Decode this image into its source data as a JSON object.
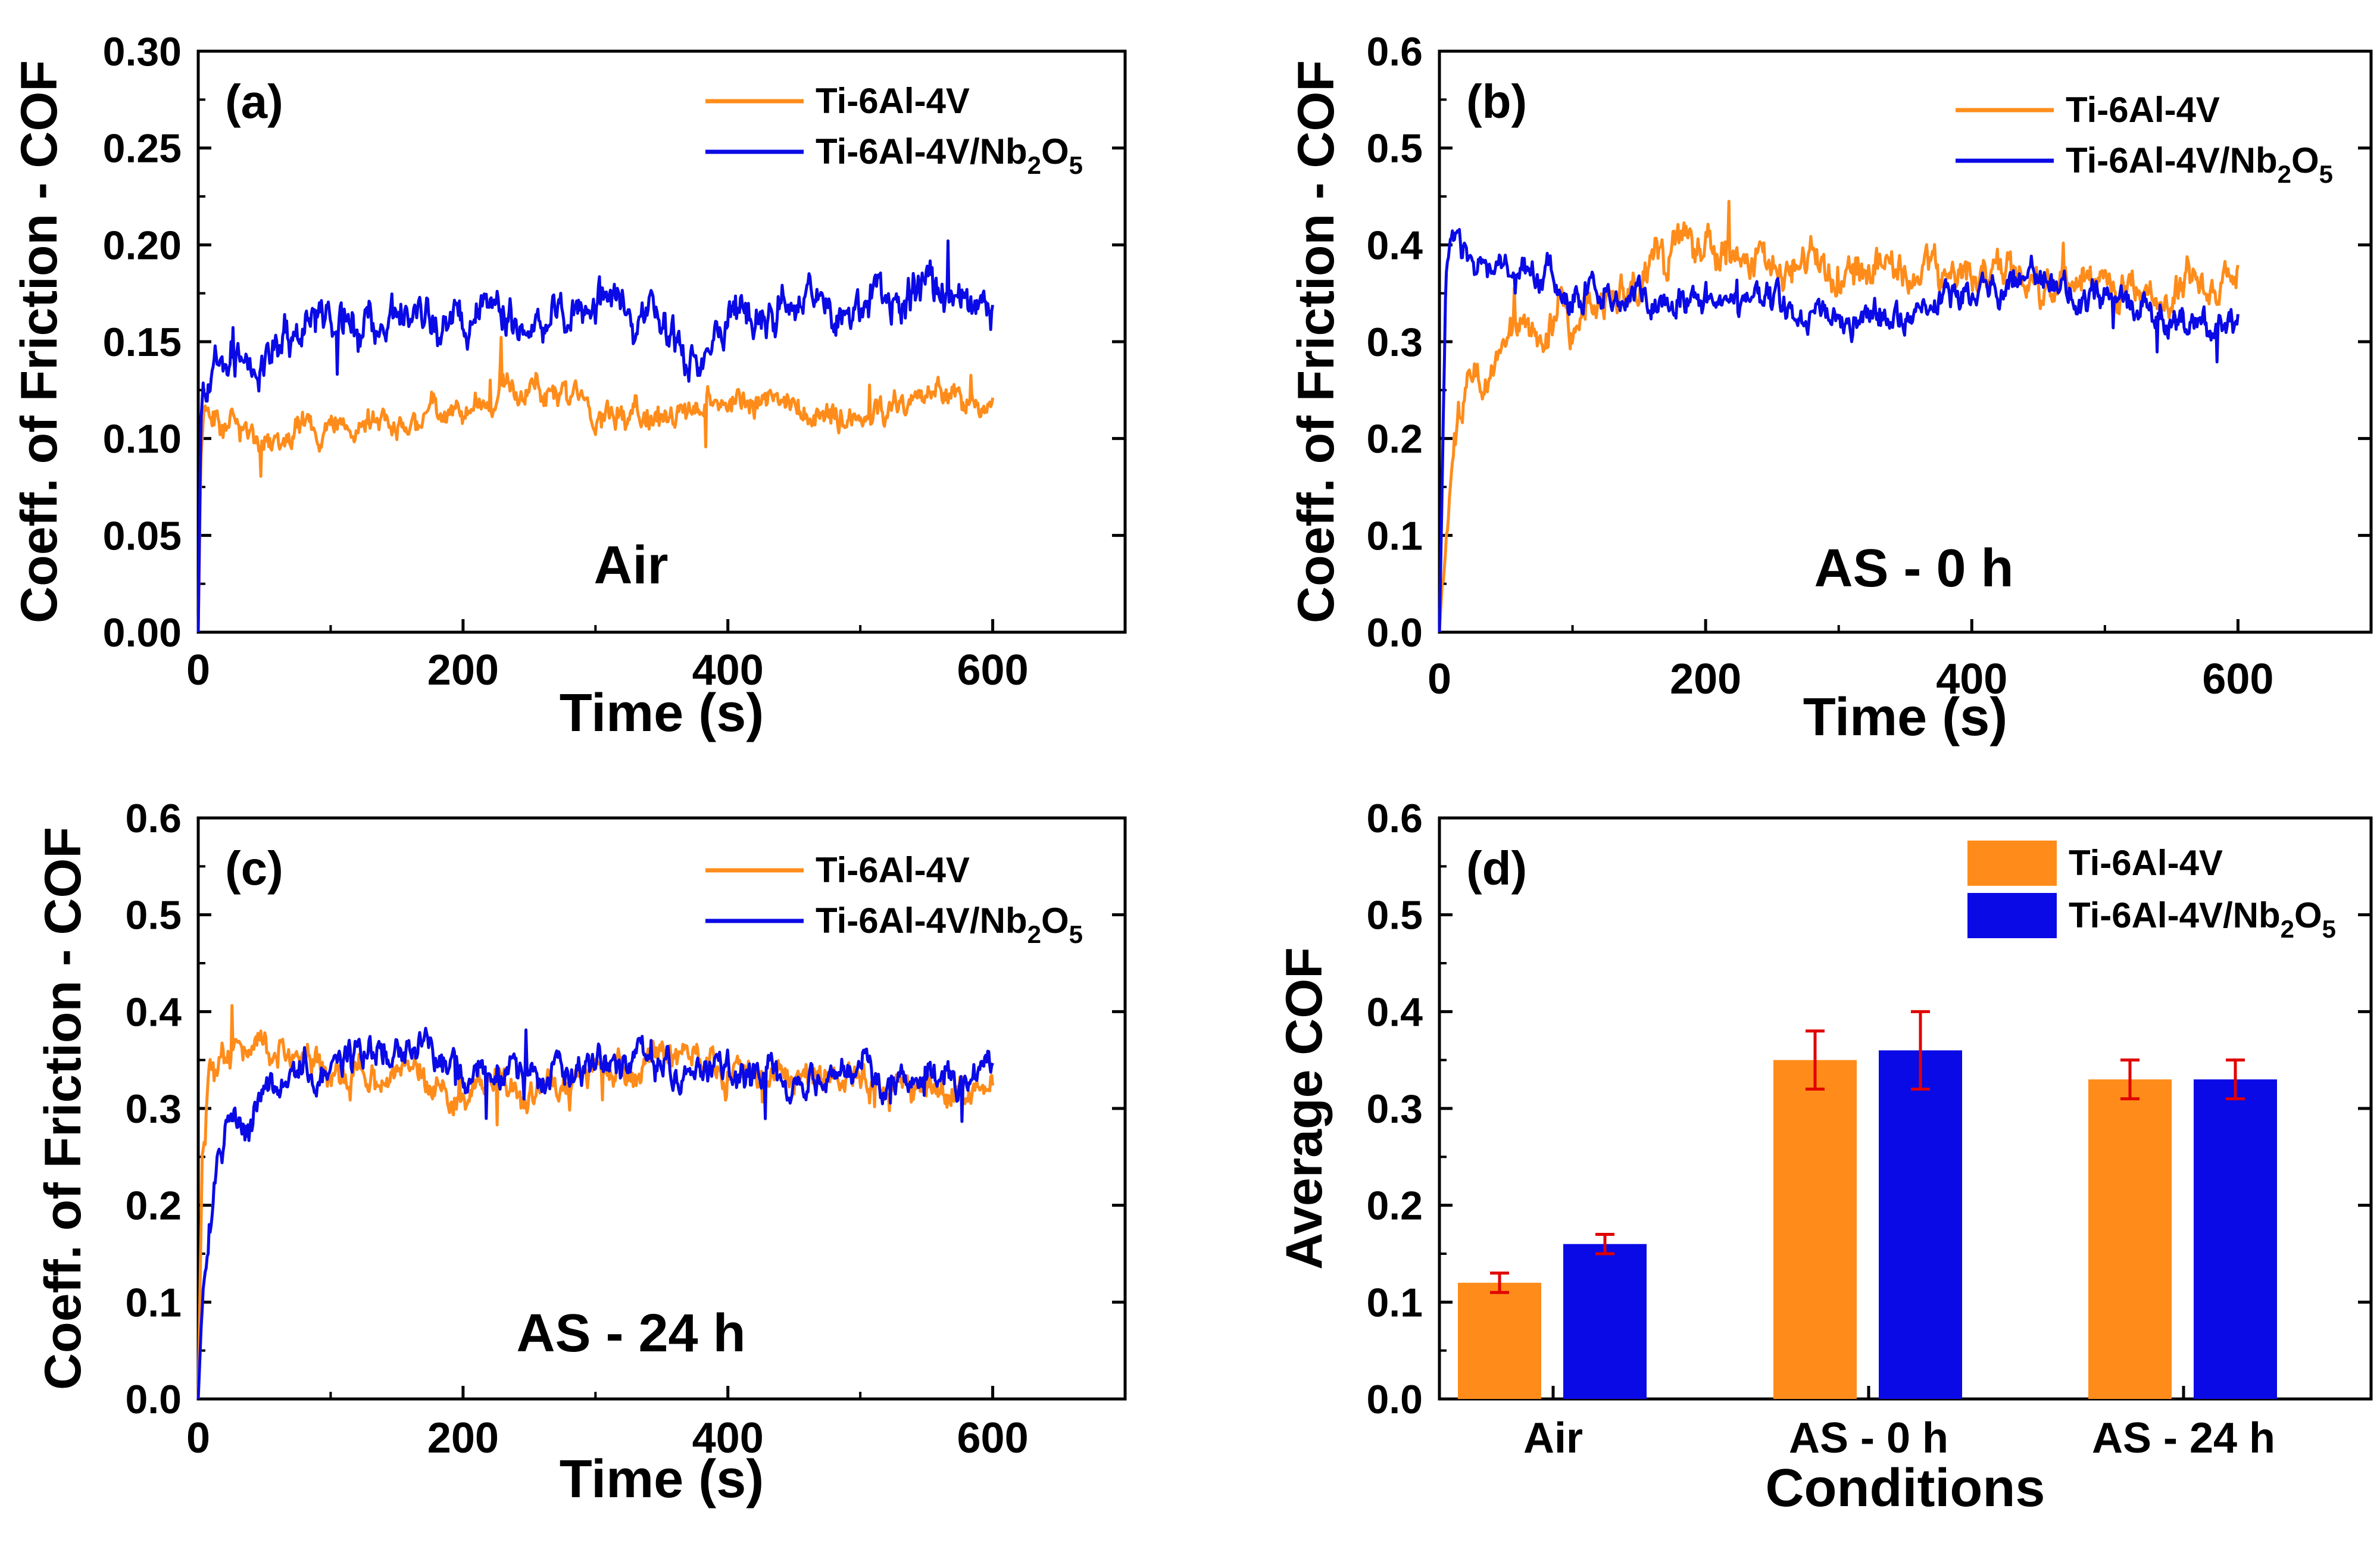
{
  "colors": {
    "ti64": "#FF8C1A",
    "nb": "#0A0AE6",
    "error": "#E00000",
    "axis": "#000000"
  },
  "chart_data": [
    {
      "id": "a",
      "type": "line",
      "panel_label": "(a)",
      "annotation": "Air",
      "xlabel": "Time (s)",
      "ylabel": "Coeff. of Friction - COF",
      "xlim": [
        0,
        700
      ],
      "ylim": [
        0,
        0.3
      ],
      "xticks": [
        0,
        200,
        400,
        600
      ],
      "yticks": [
        0.0,
        0.05,
        0.1,
        0.15,
        0.2,
        0.25,
        0.3
      ],
      "ytick_decimals": 2,
      "legend": {
        "position": "top-right",
        "entries": [
          {
            "base": "Ti-6Al-4V",
            "color_key": "ti64"
          },
          {
            "base": "Ti-6Al-4V/Nb",
            "sub1": "2",
            "mid": "O",
            "sub2": "5",
            "color_key": "nb"
          }
        ]
      },
      "series": [
        {
          "name": "Ti-6Al-4V",
          "color_key": "ti64",
          "x": [
            0,
            2,
            5,
            10,
            30,
            60,
            100,
            150,
            200,
            255,
            300,
            350,
            400,
            450,
            500,
            550,
            600
          ],
          "y": [
            0.0,
            0.09,
            0.115,
            0.11,
            0.105,
            0.1,
            0.11,
            0.105,
            0.115,
            0.13,
            0.115,
            0.11,
            0.12,
            0.115,
            0.11,
            0.12,
            0.12
          ],
          "noise": 0.008
        },
        {
          "name": "Ti-6Al-4V/Nb2O5",
          "color_key": "nb",
          "x": [
            0,
            2,
            5,
            10,
            30,
            60,
            100,
            150,
            200,
            250,
            300,
            350,
            370,
            400,
            450,
            500,
            550,
            600
          ],
          "y": [
            0.0,
            0.11,
            0.125,
            0.13,
            0.14,
            0.15,
            0.16,
            0.16,
            0.165,
            0.16,
            0.17,
            0.16,
            0.14,
            0.16,
            0.165,
            0.17,
            0.175,
            0.17
          ],
          "noise": 0.012
        }
      ]
    },
    {
      "id": "b",
      "type": "line",
      "panel_label": "(b)",
      "annotation": "AS - 0 h",
      "xlabel": "Time (s)",
      "ylabel": "Coeff. of Friction - COF",
      "xlim": [
        0,
        700
      ],
      "ylim": [
        0,
        0.6
      ],
      "xticks": [
        0,
        200,
        400,
        600
      ],
      "yticks": [
        0.0,
        0.1,
        0.2,
        0.3,
        0.4,
        0.5,
        0.6
      ],
      "ytick_decimals": 1,
      "legend": {
        "position": "top-right",
        "entries": [
          {
            "base": "Ti-6Al-4V",
            "color_key": "ti64"
          },
          {
            "base": "Ti-6Al-4V/Nb",
            "sub1": "2",
            "mid": "O",
            "sub2": "5",
            "color_key": "nb"
          }
        ]
      },
      "series": [
        {
          "name": "Ti-6Al-4V",
          "color_key": "ti64",
          "x": [
            0,
            5,
            10,
            20,
            40,
            60,
            100,
            150,
            200,
            250,
            300,
            350,
            400,
            450,
            500,
            550,
            600
          ],
          "y": [
            0.0,
            0.12,
            0.18,
            0.24,
            0.28,
            0.3,
            0.32,
            0.37,
            0.4,
            0.38,
            0.38,
            0.37,
            0.37,
            0.36,
            0.36,
            0.35,
            0.37
          ],
          "noise": 0.022
        },
        {
          "name": "Ti-6Al-4V/Nb2O5",
          "color_key": "nb",
          "x": [
            0,
            5,
            10,
            20,
            40,
            60,
            100,
            150,
            200,
            250,
            300,
            350,
            400,
            450,
            500,
            550,
            600
          ],
          "y": [
            0.0,
            0.37,
            0.39,
            0.39,
            0.37,
            0.37,
            0.36,
            0.35,
            0.34,
            0.34,
            0.33,
            0.33,
            0.35,
            0.37,
            0.35,
            0.32,
            0.32
          ],
          "noise": 0.018
        }
      ]
    },
    {
      "id": "c",
      "type": "line",
      "panel_label": "(c)",
      "annotation": "AS - 24 h",
      "xlabel": "Time (s)",
      "ylabel": "Coeff. of Friction - COF",
      "xlim": [
        0,
        700
      ],
      "ylim": [
        0,
        0.6
      ],
      "xticks": [
        0,
        200,
        400,
        600
      ],
      "yticks": [
        0.0,
        0.1,
        0.2,
        0.3,
        0.4,
        0.5,
        0.6
      ],
      "ytick_decimals": 1,
      "legend": {
        "position": "top-right",
        "entries": [
          {
            "base": "Ti-6Al-4V",
            "color_key": "ti64"
          },
          {
            "base": "Ti-6Al-4V/Nb",
            "sub1": "2",
            "mid": "O",
            "sub2": "5",
            "color_key": "nb"
          }
        ]
      },
      "series": [
        {
          "name": "Ti-6Al-4V",
          "color_key": "ti64",
          "x": [
            0,
            3,
            8,
            20,
            40,
            60,
            100,
            150,
            200,
            250,
            300,
            350,
            400,
            450,
            500,
            550,
            600
          ],
          "y": [
            0.0,
            0.25,
            0.33,
            0.36,
            0.37,
            0.36,
            0.34,
            0.33,
            0.32,
            0.32,
            0.33,
            0.36,
            0.34,
            0.33,
            0.33,
            0.32,
            0.31
          ],
          "noise": 0.018
        },
        {
          "name": "Ti-6Al-4V/Nb2O5",
          "color_key": "nb",
          "x": [
            0,
            3,
            8,
            15,
            30,
            50,
            70,
            100,
            150,
            200,
            250,
            300,
            350,
            400,
            450,
            500,
            550,
            600
          ],
          "y": [
            0.0,
            0.1,
            0.18,
            0.24,
            0.28,
            0.31,
            0.33,
            0.34,
            0.36,
            0.34,
            0.33,
            0.34,
            0.35,
            0.34,
            0.33,
            0.33,
            0.33,
            0.34
          ],
          "noise": 0.02
        }
      ]
    },
    {
      "id": "d",
      "type": "bar",
      "panel_label": "(d)",
      "xlabel": "Conditions",
      "ylabel": "Average COF",
      "ylim": [
        0,
        0.6
      ],
      "yticks": [
        0.0,
        0.1,
        0.2,
        0.3,
        0.4,
        0.5,
        0.6
      ],
      "ytick_decimals": 1,
      "categories": [
        "Air",
        "AS - 0 h",
        "AS - 24 h"
      ],
      "legend": {
        "position": "top-right",
        "entries": [
          {
            "base": "Ti-6Al-4V",
            "color_key": "ti64"
          },
          {
            "base": "Ti-6Al-4V/Nb",
            "sub1": "2",
            "mid": "O",
            "sub2": "5",
            "color_key": "nb"
          }
        ]
      },
      "series": [
        {
          "name": "Ti-6Al-4V",
          "color_key": "ti64",
          "values": [
            0.12,
            0.35,
            0.33
          ],
          "errors": [
            0.01,
            0.03,
            0.02
          ]
        },
        {
          "name": "Ti-6Al-4V/Nb2O5",
          "color_key": "nb",
          "values": [
            0.16,
            0.36,
            0.33
          ],
          "errors": [
            0.01,
            0.04,
            0.02
          ]
        }
      ]
    }
  ]
}
